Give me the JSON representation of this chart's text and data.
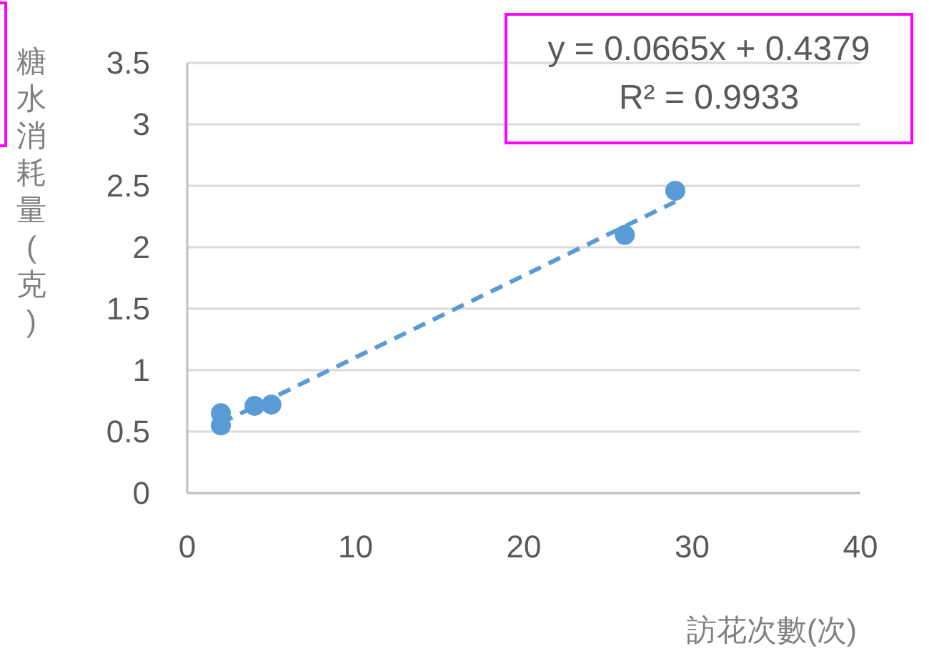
{
  "chart_data": {
    "type": "scatter",
    "xlabel": "訪花次數(次)",
    "ylabel": "糖水消耗量(克)",
    "xlim": [
      0,
      40
    ],
    "xticks": [
      0,
      10,
      20,
      30,
      40
    ],
    "ylim": [
      0,
      3.5
    ],
    "yticks": [
      0,
      0.5,
      1,
      1.5,
      2,
      2.5,
      3,
      3.5
    ],
    "grid": "y",
    "series": [
      {
        "type": "scatter",
        "marker": "circle",
        "color": "#5b9bd5",
        "x": [
          2,
          2,
          4,
          5,
          26,
          29
        ],
        "values": [
          0.65,
          0.55,
          0.71,
          0.72,
          2.1,
          2.46
        ]
      },
      {
        "type": "line",
        "color": "#5b9bd5",
        "line_style": "dashed",
        "marker": "none",
        "x": [
          2,
          29
        ],
        "values": [
          0.57,
          2.37
        ]
      }
    ],
    "annotations": [
      "y = 0.0665x + 0.4379\nR² = 0.9933"
    ]
  }
}
